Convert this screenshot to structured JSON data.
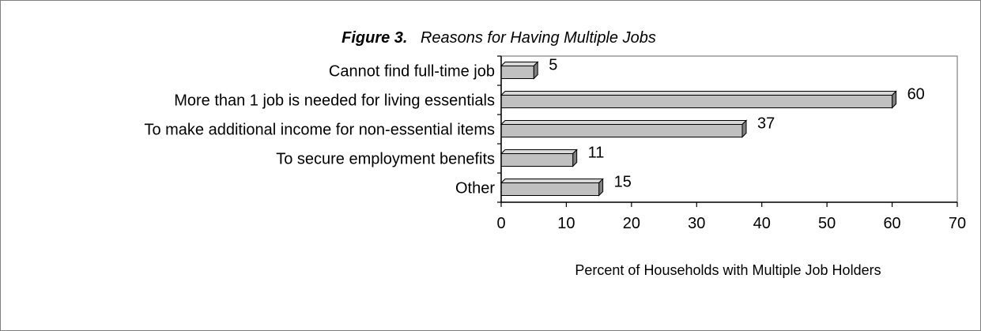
{
  "chart_data": {
    "type": "bar",
    "orientation": "horizontal",
    "title_lead": "Figure 3.",
    "title": "Reasons for Having Multiple Jobs",
    "categories": [
      "Cannot find full-time job",
      "More than 1 job is needed for living essentials",
      "To make additional income for non-essential items",
      "To secure employment benefits",
      "Other"
    ],
    "values": [
      5,
      60,
      37,
      11,
      15
    ],
    "data_labels": [
      "5",
      "60",
      "37",
      "11",
      "15"
    ],
    "xlabel": "Percent of Households with Multiple Job Holders",
    "ylabel": "",
    "xlim": [
      0,
      70
    ],
    "xticks": [
      0,
      10,
      20,
      30,
      40,
      50,
      60,
      70
    ],
    "grid": false,
    "bar_color": "#c0c0c0",
    "bar_edge_color": "#000000",
    "bar_shadow_color": "#808080"
  }
}
